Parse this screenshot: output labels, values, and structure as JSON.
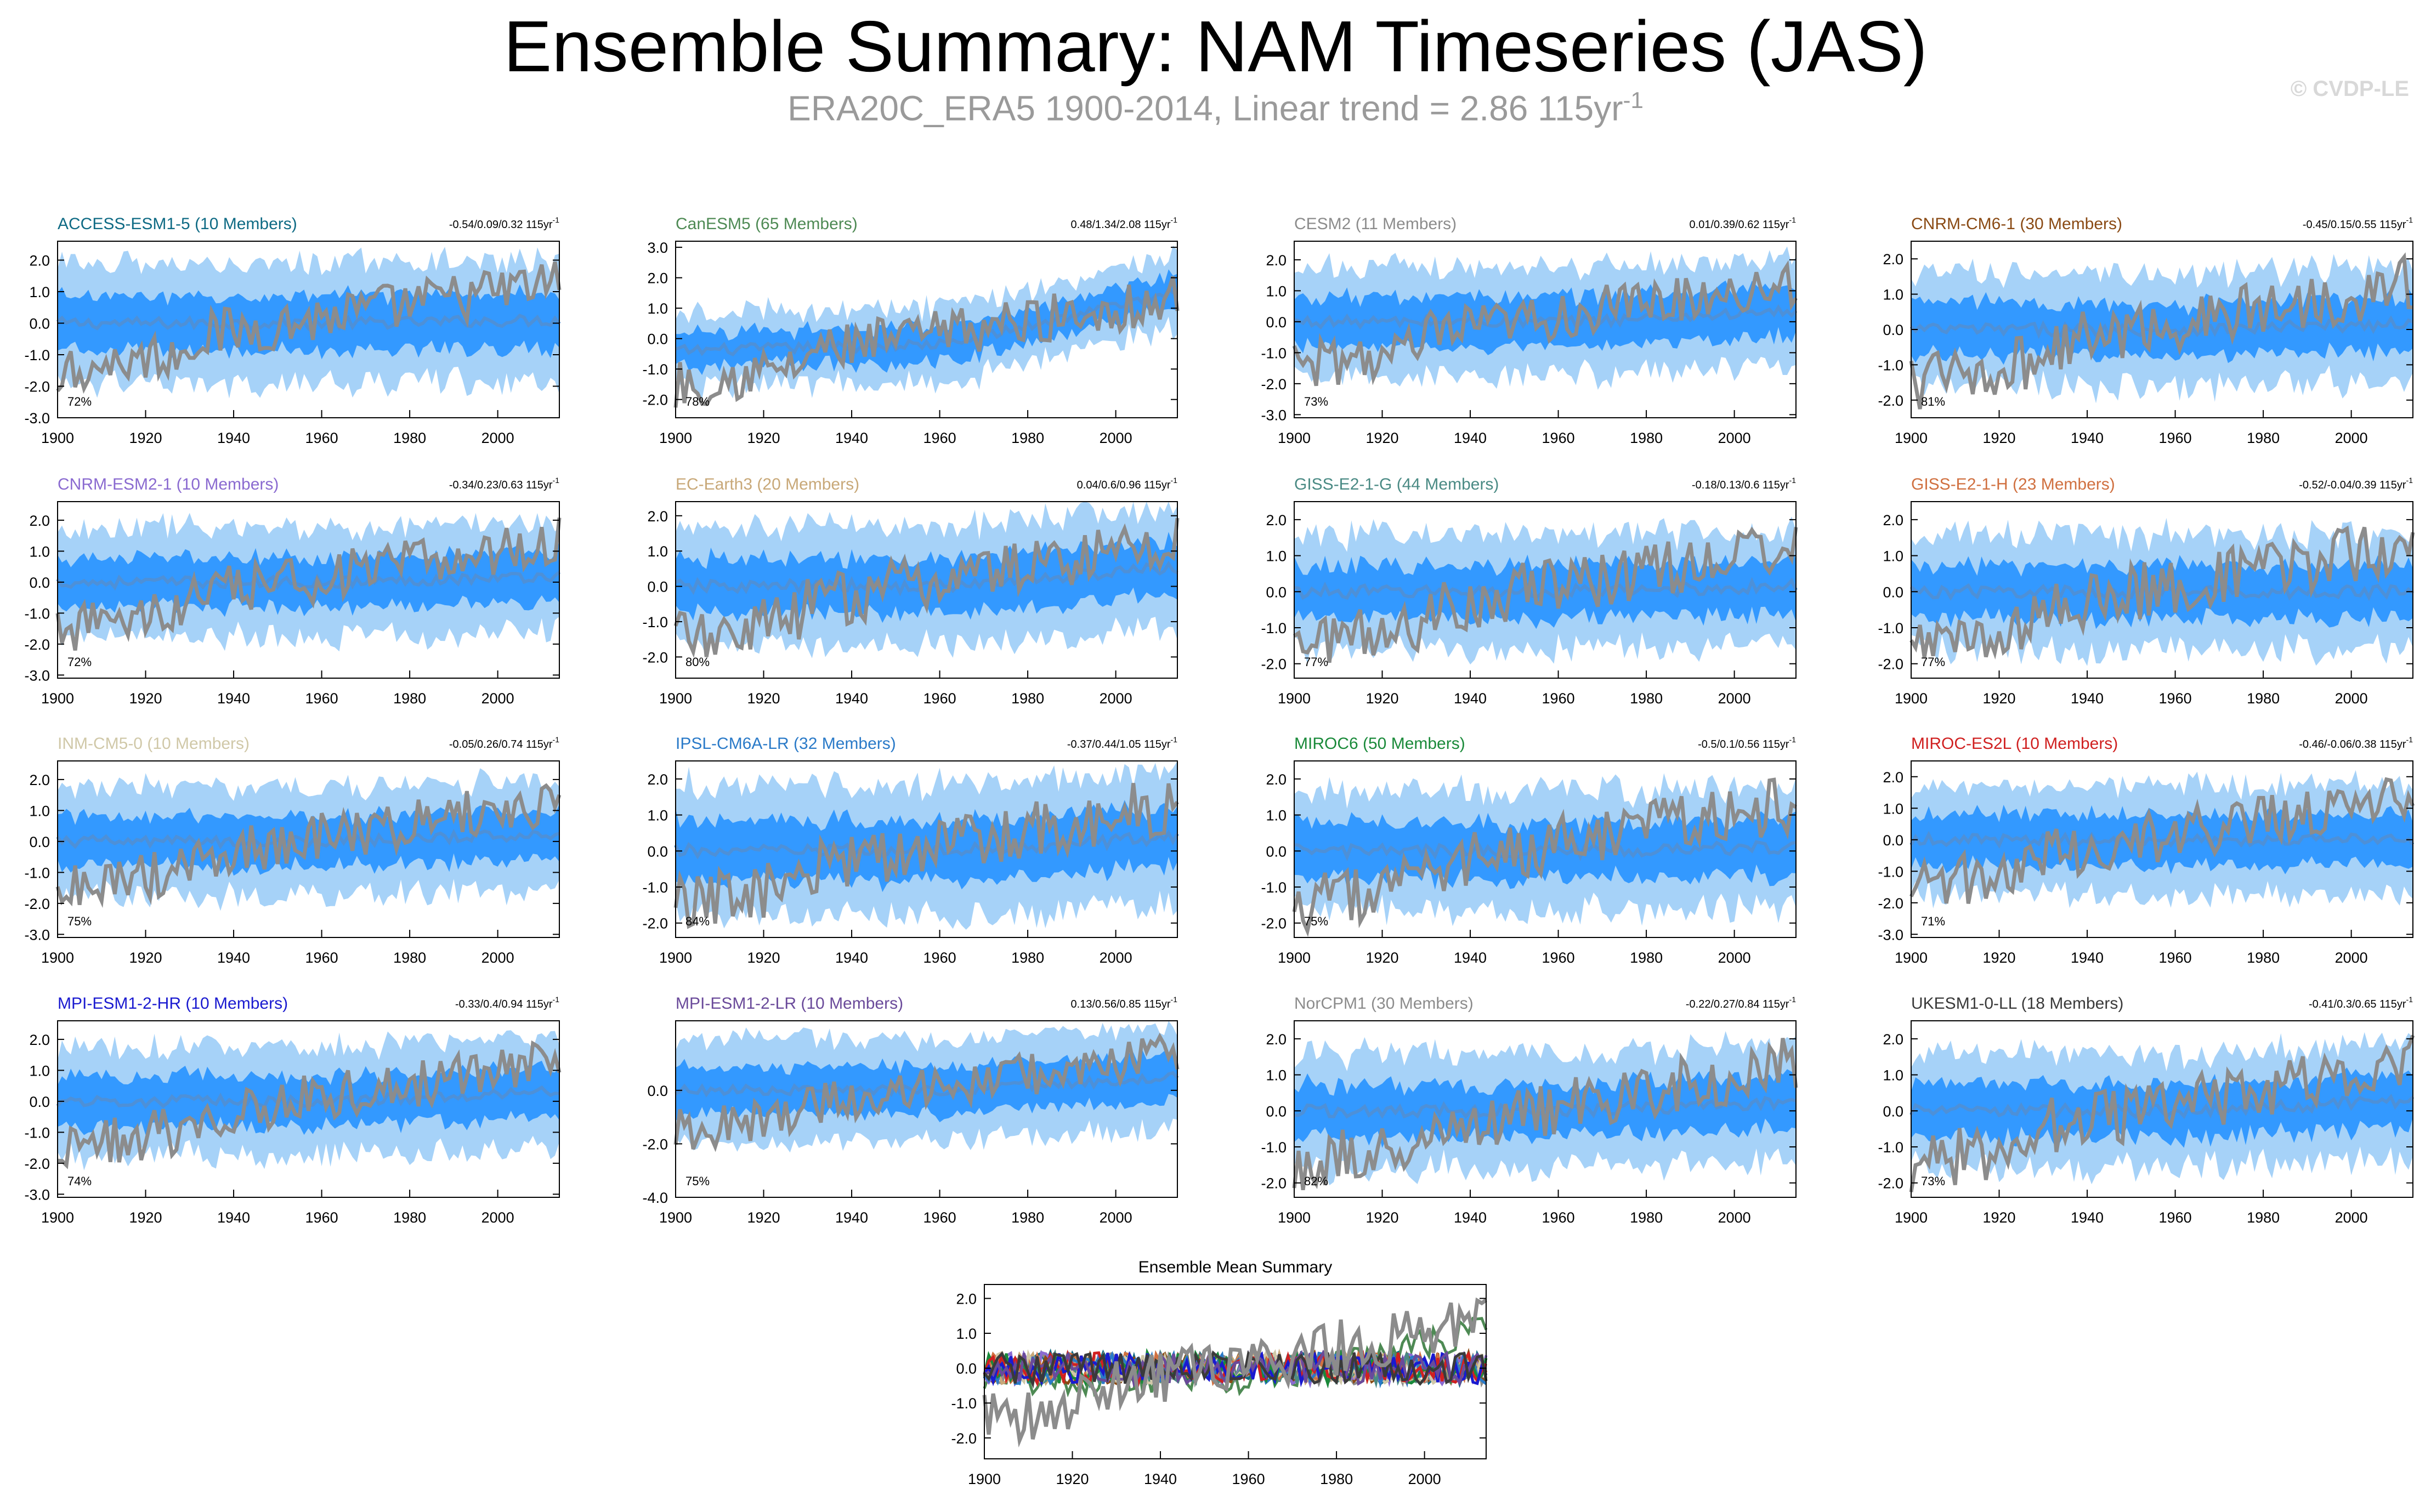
{
  "title": "Ensemble Summary: NAM Timeseries (JAS)",
  "subtitle": {
    "text": "ERA20C_ERA5 1900-2014, Linear trend = 2.86 115yr",
    "superscript": "-1"
  },
  "watermark": "© CVDP-LE",
  "colors": {
    "outer_band": "#a6d2f8",
    "inner_band": "#3399ff",
    "ensemble_mean": "#4d90d8",
    "observations": "#8c8c8c"
  },
  "chart_data": [
    {
      "type": "line",
      "title": "ACCESS-ESM1-5 (10 Members)",
      "title_color": "#0e6a84",
      "trend": "-0.54/0.09/0.32 115yr",
      "trend_sup": "-1",
      "percent": "72%",
      "ylim": [
        -3.0,
        2.6
      ],
      "yticks": [
        "2.0",
        "1.0",
        "0.0",
        "-1.0",
        "-2.0",
        "-3.0"
      ],
      "ytick_values": [
        2,
        1,
        0,
        -1,
        -2,
        -3
      ],
      "xticks": [
        "1900",
        "1920",
        "1940",
        "1960",
        "1980",
        "2000"
      ],
      "x_range": [
        1900,
        2014
      ],
      "spread": 1.0,
      "trend_drift": 0.1
    },
    {
      "type": "line",
      "title": "CanESM5 (65 Members)",
      "title_color": "#4e8a54",
      "trend": "0.48/1.34/2.08 115yr",
      "trend_sup": "-1",
      "percent": "78%",
      "ylim": [
        -2.6,
        3.2
      ],
      "yticks": [
        "3.0",
        "2.0",
        "1.0",
        "0.0",
        "-1.0",
        "-2.0"
      ],
      "ytick_values": [
        3,
        2,
        1,
        0,
        -1,
        -2
      ],
      "xticks": [
        "1900",
        "1920",
        "1940",
        "1960",
        "1980",
        "2000"
      ],
      "x_range": [
        1900,
        2014
      ],
      "spread": 0.55,
      "trend_drift": 1.6
    },
    {
      "type": "line",
      "title": "CESM2 (11 Members)",
      "title_color": "#8c8c8c",
      "trend": "0.01/0.39/0.62 115yr",
      "trend_sup": "-1",
      "percent": "73%",
      "ylim": [
        -3.1,
        2.6
      ],
      "yticks": [
        "2.0",
        "1.0",
        "0.0",
        "-1.0",
        "-2.0",
        "-3.0"
      ],
      "ytick_values": [
        2,
        1,
        0,
        -1,
        -2,
        -3
      ],
      "xticks": [
        "1900",
        "1920",
        "1940",
        "1960",
        "1980",
        "2000"
      ],
      "x_range": [
        1900,
        2014
      ],
      "spread": 0.9,
      "trend_drift": 0.35
    },
    {
      "type": "line",
      "title": "CNRM-CM6-1 (30 Members)",
      "title_color": "#8a4a14",
      "trend": "-0.45/0.15/0.55 115yr",
      "trend_sup": "-1",
      "percent": "81%",
      "ylim": [
        -2.5,
        2.5
      ],
      "yticks": [
        "2.0",
        "1.0",
        "0.0",
        "-1.0",
        "-2.0"
      ],
      "ytick_values": [
        2,
        1,
        0,
        -1,
        -2
      ],
      "xticks": [
        "1900",
        "1920",
        "1940",
        "1960",
        "1980",
        "2000"
      ],
      "x_range": [
        1900,
        2014
      ],
      "spread": 0.8,
      "trend_drift": 0.15
    },
    {
      "type": "line",
      "title": "CNRM-ESM2-1 (10 Members)",
      "title_color": "#8a6ad0",
      "trend": "-0.34/0.23/0.63 115yr",
      "trend_sup": "-1",
      "percent": "72%",
      "ylim": [
        -3.1,
        2.6
      ],
      "yticks": [
        "2.0",
        "1.0",
        "0.0",
        "-1.0",
        "-2.0",
        "-3.0"
      ],
      "ytick_values": [
        2,
        1,
        0,
        -1,
        -2,
        -3
      ],
      "xticks": [
        "1900",
        "1920",
        "1940",
        "1960",
        "1980",
        "2000"
      ],
      "x_range": [
        1900,
        2014
      ],
      "spread": 0.9,
      "trend_drift": 0.2
    },
    {
      "type": "line",
      "title": "EC-Earth3 (20 Members)",
      "title_color": "#c8a878",
      "trend": "0.04/0.6/0.96 115yr",
      "trend_sup": "-1",
      "percent": "80%",
      "ylim": [
        -2.6,
        2.4
      ],
      "yticks": [
        "2.0",
        "1.0",
        "0.0",
        "-1.0",
        "-2.0"
      ],
      "ytick_values": [
        2,
        1,
        0,
        -1,
        -2
      ],
      "xticks": [
        "1900",
        "1920",
        "1940",
        "1960",
        "1980",
        "2000"
      ],
      "x_range": [
        1900,
        2014
      ],
      "spread": 0.85,
      "trend_drift": 0.55
    },
    {
      "type": "line",
      "title": "GISS-E2-1-G (44 Members)",
      "title_color": "#4a8a84",
      "trend": "-0.18/0.13/0.6 115yr",
      "trend_sup": "-1",
      "percent": "77%",
      "ylim": [
        -2.4,
        2.5
      ],
      "yticks": [
        "2.0",
        "1.0",
        "0.0",
        "-1.0",
        "-2.0"
      ],
      "ytick_values": [
        2,
        1,
        0,
        -1,
        -2
      ],
      "xticks": [
        "1900",
        "1920",
        "1940",
        "1960",
        "1980",
        "2000"
      ],
      "x_range": [
        1900,
        2014
      ],
      "spread": 0.8,
      "trend_drift": 0.15
    },
    {
      "type": "line",
      "title": "GISS-E2-1-H (23 Members)",
      "title_color": "#d07040",
      "trend": "-0.52/-0.04/0.39 115yr",
      "trend_sup": "-1",
      "percent": "77%",
      "ylim": [
        -2.4,
        2.5
      ],
      "yticks": [
        "2.0",
        "1.0",
        "0.0",
        "-1.0",
        "-2.0"
      ],
      "ytick_values": [
        2,
        1,
        0,
        -1,
        -2
      ],
      "xticks": [
        "1900",
        "1920",
        "1940",
        "1960",
        "1980",
        "2000"
      ],
      "x_range": [
        1900,
        2014
      ],
      "spread": 0.8,
      "trend_drift": 0.0
    },
    {
      "type": "line",
      "title": "INM-CM5-0 (10 Members)",
      "title_color": "#d0c8a8",
      "trend": "-0.05/0.26/0.74 115yr",
      "trend_sup": "-1",
      "percent": "75%",
      "ylim": [
        -3.1,
        2.6
      ],
      "yticks": [
        "2.0",
        "1.0",
        "0.0",
        "-1.0",
        "-2.0",
        "-3.0"
      ],
      "ytick_values": [
        2,
        1,
        0,
        -1,
        -2,
        -3
      ],
      "xticks": [
        "1900",
        "1920",
        "1940",
        "1960",
        "1980",
        "2000"
      ],
      "x_range": [
        1900,
        2014
      ],
      "spread": 0.9,
      "trend_drift": 0.25
    },
    {
      "type": "line",
      "title": "IPSL-CM6A-LR (32 Members)",
      "title_color": "#2a7ac8",
      "trend": "-0.37/0.44/1.05 115yr",
      "trend_sup": "-1",
      "percent": "84%",
      "ylim": [
        -2.4,
        2.5
      ],
      "yticks": [
        "2.0",
        "1.0",
        "0.0",
        "-1.0",
        "-2.0"
      ],
      "ytick_values": [
        2,
        1,
        0,
        -1,
        -2
      ],
      "xticks": [
        "1900",
        "1920",
        "1940",
        "1960",
        "1980",
        "2000"
      ],
      "x_range": [
        1900,
        2014
      ],
      "spread": 0.95,
      "trend_drift": 0.4
    },
    {
      "type": "line",
      "title": "MIROC6 (50 Members)",
      "title_color": "#1a8a3a",
      "trend": "-0.5/0.1/0.56 115yr",
      "trend_sup": "-1",
      "percent": "75%",
      "ylim": [
        -2.4,
        2.5
      ],
      "yticks": [
        "2.0",
        "1.0",
        "0.0",
        "-1.0",
        "-2.0"
      ],
      "ytick_values": [
        2,
        1,
        0,
        -1,
        -2
      ],
      "xticks": [
        "1900",
        "1920",
        "1940",
        "1960",
        "1980",
        "2000"
      ],
      "x_range": [
        1900,
        2014
      ],
      "spread": 0.85,
      "trend_drift": 0.1
    },
    {
      "type": "line",
      "title": "MIROC-ES2L (10 Members)",
      "title_color": "#d02020",
      "trend": "-0.46/-0.06/0.38 115yr",
      "trend_sup": "-1",
      "percent": "71%",
      "ylim": [
        -3.1,
        2.5
      ],
      "yticks": [
        "2.0",
        "1.0",
        "0.0",
        "-1.0",
        "-2.0",
        "-3.0"
      ],
      "ytick_values": [
        2,
        1,
        0,
        -1,
        -2,
        -3
      ],
      "xticks": [
        "1900",
        "1920",
        "1940",
        "1960",
        "1980",
        "2000"
      ],
      "x_range": [
        1900,
        2014
      ],
      "spread": 0.9,
      "trend_drift": 0.0
    },
    {
      "type": "line",
      "title": "MPI-ESM1-2-HR (10 Members)",
      "title_color": "#1a1ad0",
      "trend": "-0.33/0.4/0.94 115yr",
      "trend_sup": "-1",
      "percent": "74%",
      "ylim": [
        -3.1,
        2.6
      ],
      "yticks": [
        "2.0",
        "1.0",
        "0.0",
        "-1.0",
        "-2.0",
        "-3.0"
      ],
      "ytick_values": [
        2,
        1,
        0,
        -1,
        -2,
        -3
      ],
      "xticks": [
        "1900",
        "1920",
        "1940",
        "1960",
        "1980",
        "2000"
      ],
      "x_range": [
        1900,
        2014
      ],
      "spread": 0.9,
      "trend_drift": 0.35
    },
    {
      "type": "line",
      "title": "MPI-ESM1-2-LR (10 Members)",
      "title_color": "#6a4a9a",
      "trend": "0.13/0.56/0.85 115yr",
      "trend_sup": "-1",
      "percent": "75%",
      "ylim": [
        -4.0,
        2.6
      ],
      "yticks": [
        "0.0",
        "-2.0",
        "-4.0"
      ],
      "ytick_values": [
        0,
        -2,
        -4
      ],
      "xticks": [
        "1900",
        "1920",
        "1940",
        "1960",
        "1980",
        "2000"
      ],
      "x_range": [
        1900,
        2014
      ],
      "spread": 1.0,
      "trend_drift": 0.5
    },
    {
      "type": "line",
      "title": "NorCPM1 (30 Members)",
      "title_color": "#8c8c8c",
      "trend": "-0.22/0.27/0.84 115yr",
      "trend_sup": "-1",
      "percent": "82%",
      "ylim": [
        -2.4,
        2.5
      ],
      "yticks": [
        "2.0",
        "1.0",
        "0.0",
        "-1.0",
        "-2.0"
      ],
      "ytick_values": [
        2,
        1,
        0,
        -1,
        -2
      ],
      "xticks": [
        "1900",
        "1920",
        "1940",
        "1960",
        "1980",
        "2000"
      ],
      "x_range": [
        1900,
        2014
      ],
      "spread": 0.8,
      "trend_drift": 0.25
    },
    {
      "type": "line",
      "title": "UKESM1-0-LL (18 Members)",
      "title_color": "#3a3a3a",
      "trend": "-0.41/0.3/0.65 115yr",
      "trend_sup": "-1",
      "percent": "73%",
      "ylim": [
        -2.4,
        2.5
      ],
      "yticks": [
        "2.0",
        "1.0",
        "0.0",
        "-1.0",
        "-2.0"
      ],
      "ytick_values": [
        2,
        1,
        0,
        -1,
        -2
      ],
      "xticks": [
        "1900",
        "1920",
        "1940",
        "1960",
        "1980",
        "2000"
      ],
      "x_range": [
        1900,
        2014
      ],
      "spread": 0.8,
      "trend_drift": 0.3
    },
    {
      "type": "line",
      "title": "Ensemble Mean Summary",
      "title_color": "#000000",
      "trend": "",
      "trend_sup": "",
      "percent": "",
      "ylim": [
        -2.6,
        2.4
      ],
      "yticks": [
        "2.0",
        "1.0",
        "0.0",
        "-1.0",
        "-2.0"
      ],
      "ytick_values": [
        2,
        1,
        0,
        -1,
        -2
      ],
      "xticks": [
        "1900",
        "1920",
        "1940",
        "1960",
        "1980",
        "2000"
      ],
      "x_range": [
        1900,
        2014
      ],
      "summary": true,
      "summary_colors": [
        "#0e6a84",
        "#4e8a54",
        "#8c8c8c",
        "#8a4a14",
        "#8a6ad0",
        "#c8a878",
        "#4a8a84",
        "#d07040",
        "#d0c8a8",
        "#2a7ac8",
        "#1a8a3a",
        "#d02020",
        "#1a1ad0",
        "#6a4a9a",
        "#3a3a3a"
      ]
    }
  ]
}
